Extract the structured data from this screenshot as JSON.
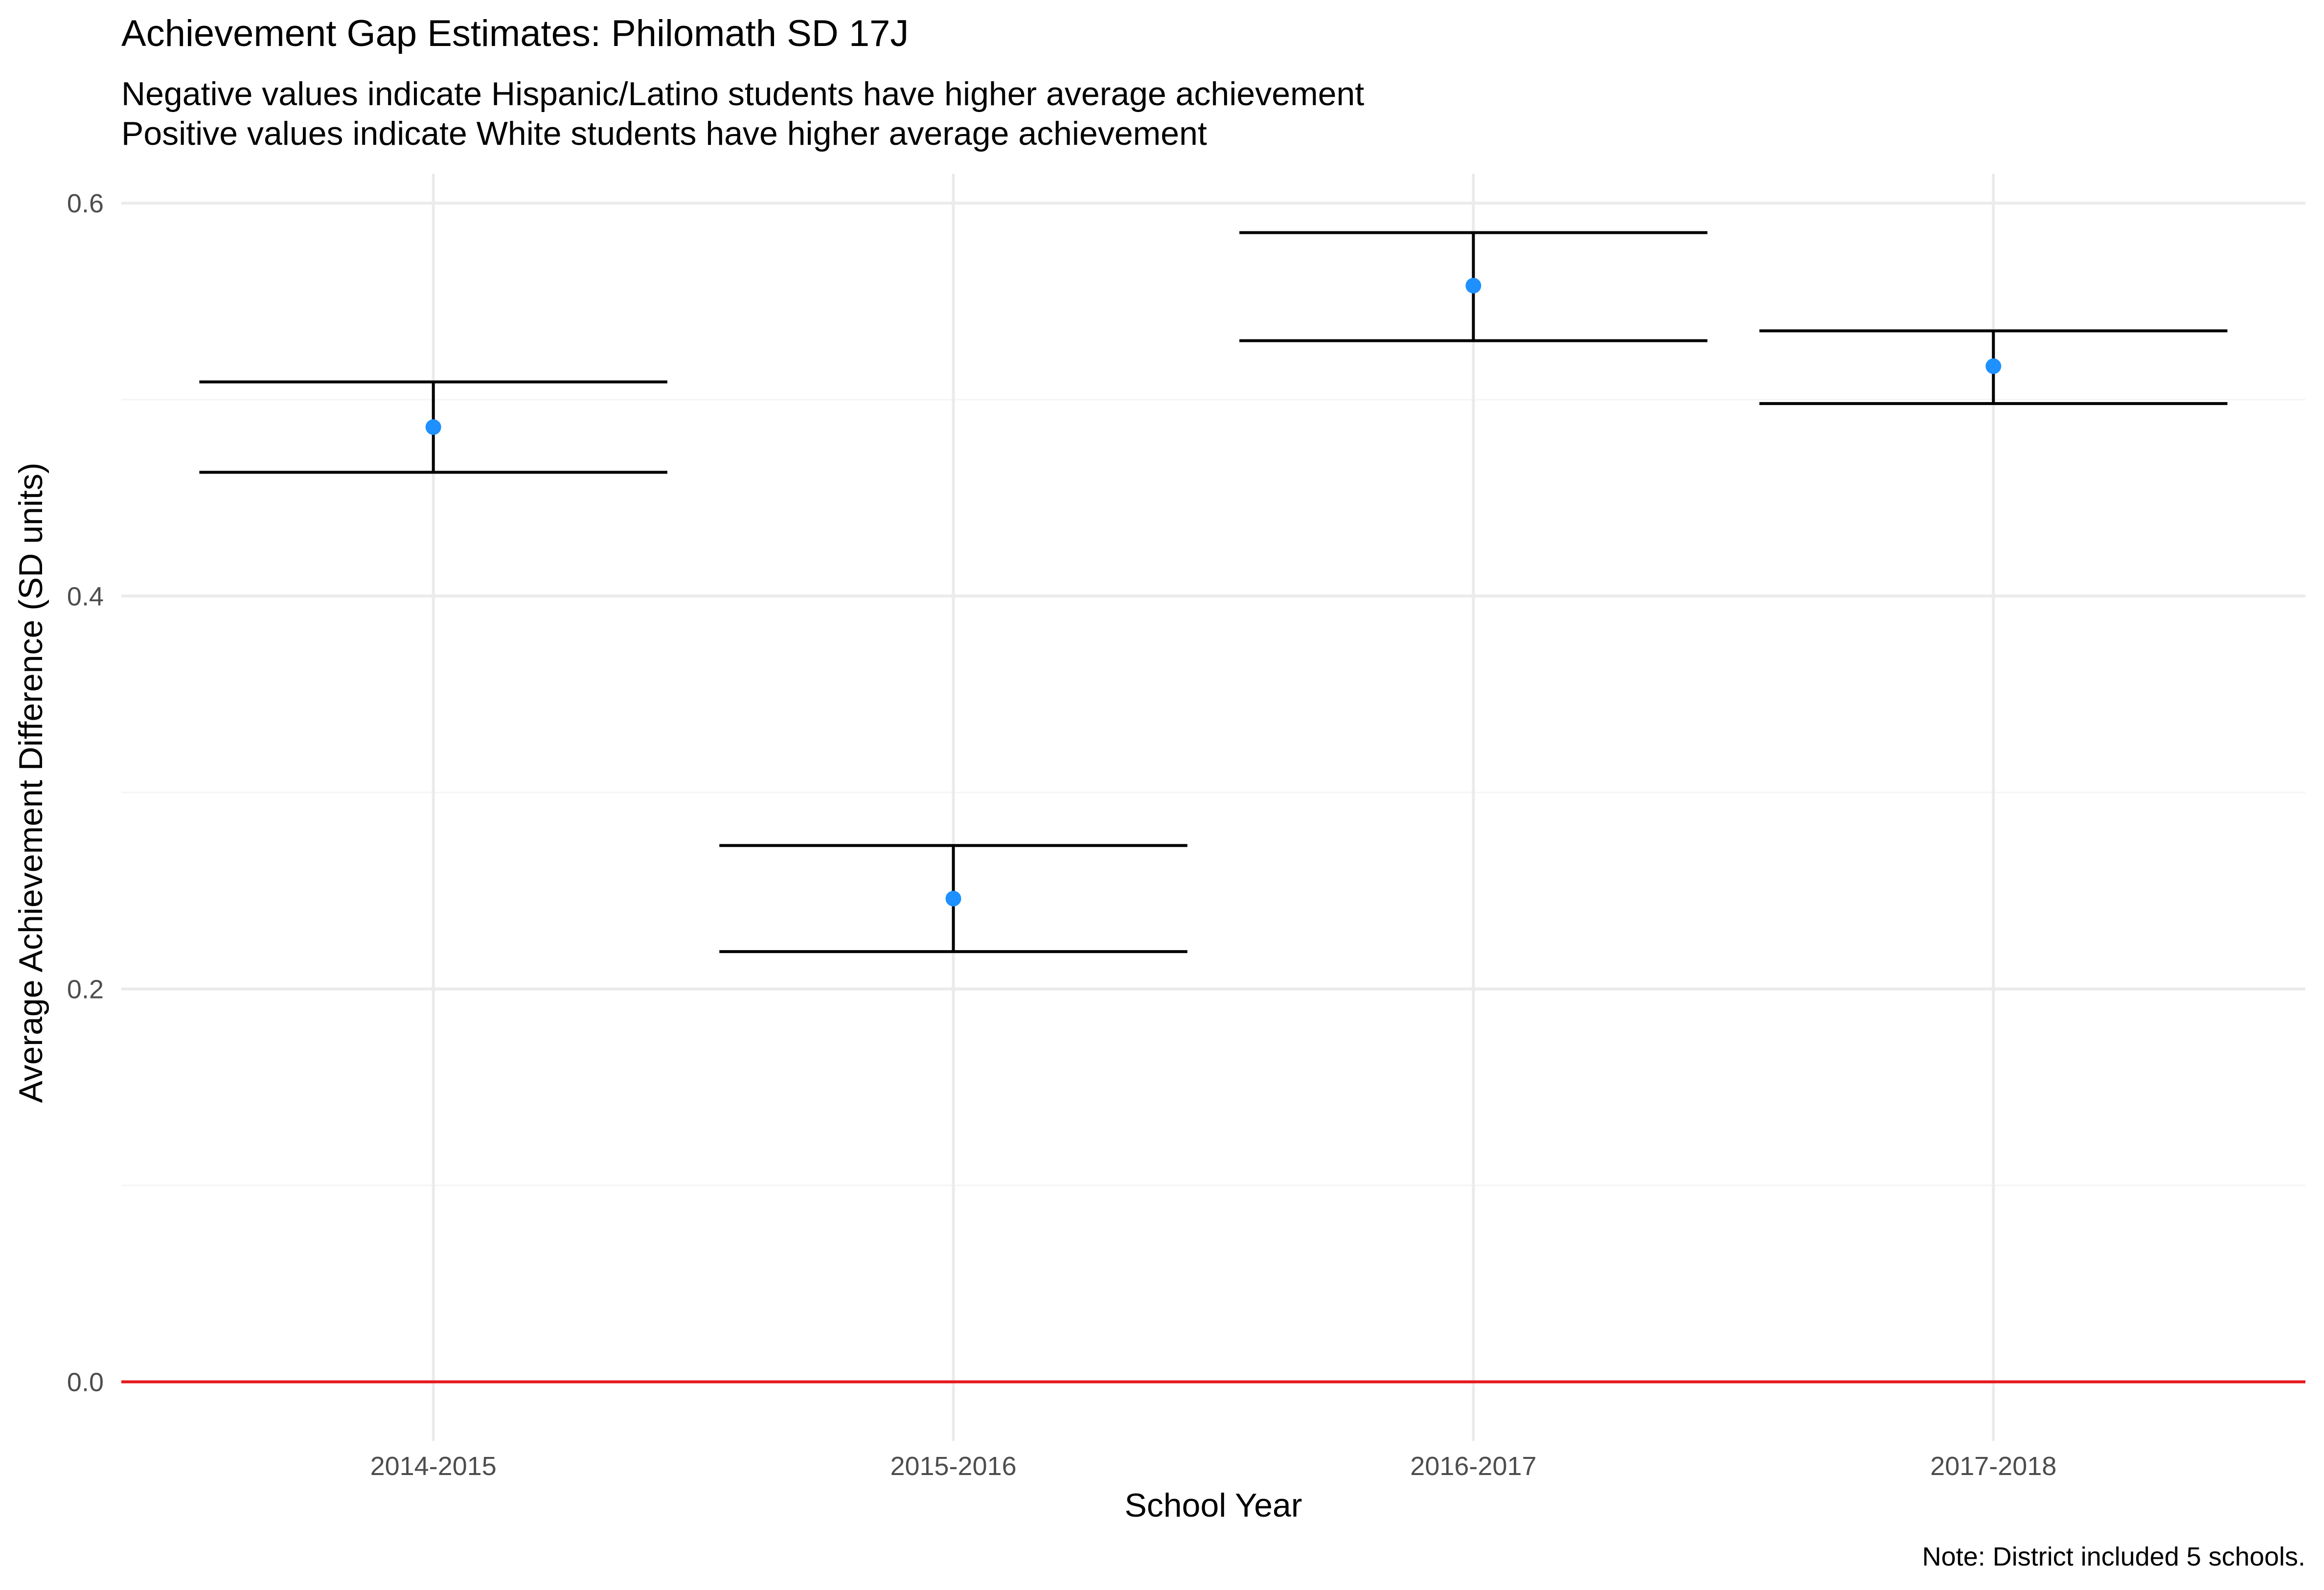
{
  "chart_data": {
    "type": "scatter",
    "title": "Achievement Gap Estimates: Philomath SD 17J",
    "subtitle_lines": [
      "Negative values indicate Hispanic/Latino students have higher average achievement",
      "Positive values indicate White students have higher average achievement"
    ],
    "xlabel": "School Year",
    "ylabel": "Average Achievement Difference (SD units)",
    "caption": "Note: District included 5 schools.",
    "categories": [
      "2014-2015",
      "2015-2016",
      "2016-2017",
      "2017-2018"
    ],
    "series": [
      {
        "values": [
          0.486,
          0.246,
          0.558,
          0.517
        ],
        "lower": [
          0.463,
          0.219,
          0.53,
          0.498
        ],
        "upper": [
          0.509,
          0.273,
          0.585,
          0.535
        ]
      }
    ],
    "reference_line": {
      "y": 0.0
    },
    "ylim": [
      -0.03,
      0.615
    ],
    "yticks": [
      0.0,
      0.2,
      0.4,
      0.6
    ],
    "ytick_labels": [
      "0.0",
      "0.2",
      "0.4",
      "0.6"
    ],
    "grid": true,
    "colors": {
      "point": "#1E90FF",
      "errorbar": "#000000",
      "reference_line": "#E41A1C",
      "grid_major": "#EBEBEB",
      "grid_minor": "#F5F5F5",
      "tick_text": "#4D4D4D"
    }
  }
}
